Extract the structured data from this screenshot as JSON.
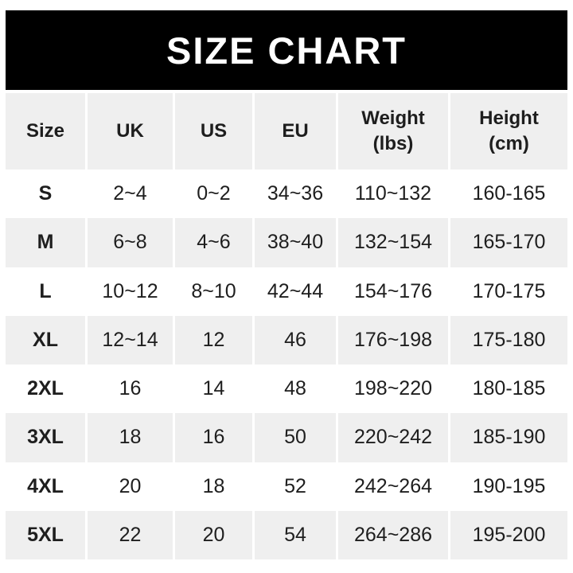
{
  "banner": {
    "title": "SIZE CHART"
  },
  "chart_data": {
    "type": "table",
    "title": "SIZE CHART",
    "columns": [
      "Size",
      "UK",
      "US",
      "EU",
      "Weight (lbs)",
      "Height (cm)"
    ],
    "rows": [
      [
        "S",
        "2~4",
        "0~2",
        "34~36",
        "110~132",
        "160-165"
      ],
      [
        "M",
        "6~8",
        "4~6",
        "38~40",
        "132~154",
        "165-170"
      ],
      [
        "L",
        "10~12",
        "8~10",
        "42~44",
        "154~176",
        "170-175"
      ],
      [
        "XL",
        "12~14",
        "12",
        "46",
        "176~198",
        "175-180"
      ],
      [
        "2XL",
        "16",
        "14",
        "48",
        "198~220",
        "180-185"
      ],
      [
        "3XL",
        "18",
        "16",
        "50",
        "220~242",
        "185-190"
      ],
      [
        "4XL",
        "20",
        "18",
        "52",
        "242~264",
        "190-195"
      ],
      [
        "5XL",
        "22",
        "20",
        "54",
        "264~286",
        "195-200"
      ]
    ]
  },
  "table": {
    "header": [
      {
        "line1": "Size",
        "line2": ""
      },
      {
        "line1": "UK",
        "line2": ""
      },
      {
        "line1": "US",
        "line2": ""
      },
      {
        "line1": "EU",
        "line2": ""
      },
      {
        "line1": "Weight",
        "line2": "(lbs)"
      },
      {
        "line1": "Height",
        "line2": "(cm)"
      }
    ]
  },
  "colors": {
    "page_bg": "#ffffff",
    "banner_bg": "#000000",
    "banner_text": "#ffffff",
    "row_stripe": "#efefef",
    "row_plain": "#ffffff",
    "cell_text": "#1e1e1e"
  }
}
